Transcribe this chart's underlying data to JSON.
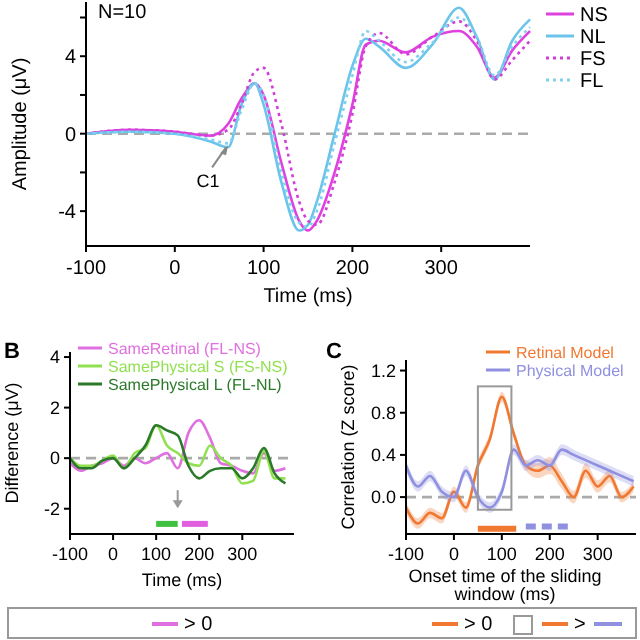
{
  "chart_data": [
    {
      "type": "line",
      "xlabel": "Time (ms)",
      "ylabel": "Amplitude (μV)",
      "xlim": [
        -100,
        400
      ],
      "ylim": [
        -5.8,
        6.8
      ],
      "xticks": [
        -100,
        0,
        100,
        200,
        300
      ],
      "yticks": [
        -4,
        {
          "value": -2,
          "label": null
        },
        0,
        {
          "value": 2,
          "label": null
        },
        4,
        {
          "value": 6,
          "label": null
        }
      ],
      "legend": "right",
      "annotations": [
        "N=10",
        {
          "text": "C1",
          "x": 60,
          "y": -0.5
        }
      ],
      "ref_lines": [
        {
          "axis": "y",
          "value": 0,
          "color": "#aaaaaa",
          "line_style": "dashed"
        }
      ],
      "x": [
        -100,
        -50,
        0,
        40,
        60,
        75,
        90,
        100,
        120,
        140,
        150,
        160,
        180,
        200,
        215,
        230,
        260,
        290,
        320,
        340,
        360,
        380,
        400
      ],
      "series": [
        {
          "name": "NS",
          "color": "#e040e0",
          "line_style": "solid",
          "values": [
            0,
            0.2,
            0.1,
            -0.1,
            0.5,
            1.8,
            2.6,
            2,
            -1.5,
            -4.5,
            -5,
            -4.5,
            -2,
            1.5,
            4.6,
            4.8,
            4.2,
            5.0,
            5.3,
            4.5,
            2.9,
            4.3,
            5.3
          ]
        },
        {
          "name": "NL",
          "color": "#6cc4ea",
          "line_style": "solid",
          "values": [
            0,
            0.1,
            0,
            -0.4,
            -0.7,
            1.5,
            2.6,
            1.5,
            -2.5,
            -5,
            -4.7,
            -3.5,
            0,
            3.5,
            4.9,
            4.5,
            3.4,
            4.6,
            6.5,
            5,
            2.8,
            4.8,
            5.9
          ]
        },
        {
          "name": "FS",
          "color": "#d040d8",
          "line_style": "dotted",
          "values": [
            0,
            0.2,
            0.1,
            -0.1,
            0.2,
            1.5,
            3.2,
            3.4,
            0.5,
            -3.5,
            -4.5,
            -4.7,
            -2.5,
            1,
            4.5,
            5.2,
            4.1,
            5,
            5.8,
            4.8,
            2.8,
            3.8,
            4.8
          ]
        },
        {
          "name": "FL",
          "color": "#80d0f0",
          "line_style": "dotted",
          "values": [
            0,
            0.1,
            0,
            -0.3,
            -0.5,
            1.2,
            2.6,
            2,
            -2,
            -4.6,
            -4.8,
            -4,
            -0.5,
            3,
            5.3,
            4.8,
            3.7,
            4.7,
            6,
            5,
            3,
            4.5,
            5.5
          ]
        }
      ]
    },
    {
      "type": "line",
      "title": "B",
      "xlabel": "Time (ms)",
      "ylabel": "Difference (μV)",
      "xlim": [
        -100,
        420
      ],
      "ylim": [
        -3,
        4.2
      ],
      "xticks": [
        -100,
        0,
        100,
        200,
        300
      ],
      "yticks": [
        -2,
        0,
        2,
        4
      ],
      "legend": "top",
      "annotations": [
        "> 0"
      ],
      "ref_lines": [
        {
          "axis": "y",
          "value": 0,
          "color": "#aaaaaa",
          "line_style": "dashed"
        }
      ],
      "x": [
        -100,
        -75,
        -50,
        -25,
        0,
        25,
        50,
        75,
        100,
        125,
        150,
        175,
        200,
        225,
        250,
        275,
        300,
        325,
        350,
        375,
        400
      ],
      "series": [
        {
          "name": "SameRetinal (FL-NS)",
          "color": "#e070e0",
          "values": [
            -0.2,
            -0.5,
            -0.3,
            -0.2,
            0,
            -0.3,
            0,
            -0.2,
            0,
            0.2,
            -0.4,
            1.0,
            1.5,
            0.8,
            -0.2,
            -0.3,
            -0.5,
            -0.6,
            0.2,
            -0.5,
            -0.4
          ]
        },
        {
          "name": "SamePhysical S (FS-NS)",
          "color": "#90e050",
          "values": [
            0,
            -0.3,
            -0.3,
            -0.1,
            0.1,
            -0.4,
            0.2,
            0.4,
            1.3,
            0.5,
            0.2,
            -0.2,
            -0.3,
            0.5,
            0,
            -0.3,
            -1.0,
            -0.9,
            0.3,
            -0.8,
            -0.8
          ]
        },
        {
          "name": "SamePhysical L (FL-NL)",
          "color": "#2a7a2a",
          "values": [
            0,
            -0.4,
            -0.4,
            -0.1,
            0,
            -0.4,
            0,
            0.5,
            1.3,
            1.1,
            0.9,
            -0.3,
            -0.8,
            -0.5,
            -0.4,
            -0.4,
            -0.8,
            -0.4,
            0.4,
            -0.6,
            -1.0
          ]
        },
        {
          "color": "#40c040",
          "x": [
            100,
            150
          ],
          "values": [
            -2.6,
            -2.6
          ]
        },
        {
          "color": "#e060e0",
          "x": [
            160,
            220
          ],
          "values": [
            -2.6,
            -2.6
          ]
        }
      ]
    },
    {
      "type": "line",
      "title": "C",
      "xlabel": "Onset time of the sliding window (ms)",
      "ylabel": "Correlation (Z score)",
      "xlim": [
        -100,
        380
      ],
      "ylim": [
        -0.35,
        1.3
      ],
      "xticks": [
        -100,
        0,
        100,
        200,
        300
      ],
      "yticks": [
        {
          "value": 0,
          "label": "0.0"
        },
        0.4,
        0.8,
        1.2
      ],
      "legend": "top right",
      "annotations": [
        "> 0",
        ">"
      ],
      "ref_lines": [
        {
          "axis": "y",
          "value": 0,
          "color": "#aaaaaa",
          "line_style": "dashed"
        }
      ],
      "x": [
        -100,
        -75,
        -50,
        -25,
        0,
        25,
        50,
        75,
        100,
        125,
        150,
        175,
        200,
        225,
        250,
        275,
        300,
        325,
        350,
        375
      ],
      "series": [
        {
          "name": "Retinal Model",
          "color": "#f07830",
          "values": [
            -0.1,
            -0.25,
            -0.15,
            -0.2,
            0.05,
            -0.1,
            0.3,
            0.55,
            0.95,
            0.6,
            0.3,
            0.25,
            0.3,
            0.15,
            0.0,
            0.25,
            0.1,
            0.2,
            0.0,
            0.1
          ],
          "lower": [
            -0.15,
            -0.3,
            -0.2,
            -0.25,
            0,
            -0.15,
            0.25,
            0.5,
            0.9,
            0.55,
            0.25,
            0.18,
            0.22,
            0.08,
            -0.06,
            0.18,
            0.04,
            0.14,
            -0.05,
            0.05
          ],
          "upper": [
            -0.05,
            -0.2,
            -0.1,
            -0.15,
            0.1,
            -0.05,
            0.35,
            0.6,
            1.0,
            0.65,
            0.35,
            0.32,
            0.38,
            0.22,
            0.06,
            0.32,
            0.16,
            0.26,
            0.05,
            0.15
          ]
        },
        {
          "name": "Physical Model",
          "color": "#9090e0",
          "values": [
            0.3,
            0.1,
            0.2,
            0.05,
            0.0,
            0.25,
            0.0,
            -0.1,
            0.05,
            0.45,
            0.3,
            0.35,
            0.3,
            0.45,
            0.4,
            0.35,
            0.3,
            0.25,
            0.2,
            0.15
          ],
          "lower": [
            0.25,
            0.05,
            0.15,
            0,
            -0.05,
            0.2,
            -0.05,
            -0.15,
            0,
            0.4,
            0.25,
            0.3,
            0.25,
            0.4,
            0.35,
            0.3,
            0.25,
            0.2,
            0.15,
            0.1
          ],
          "upper": [
            0.35,
            0.15,
            0.25,
            0.1,
            0.05,
            0.3,
            0.05,
            -0.05,
            0.1,
            0.5,
            0.35,
            0.4,
            0.35,
            0.5,
            0.45,
            0.4,
            0.35,
            0.3,
            0.25,
            0.2
          ]
        },
        {
          "color": "#f07830",
          "x": [
            50,
            130
          ],
          "values": [
            -0.3,
            -0.3
          ]
        },
        {
          "color": "#9090e0",
          "x": [
            150,
            240
          ],
          "values": [
            -0.28,
            -0.28
          ],
          "line_style": "dashed"
        }
      ]
    }
  ]
}
